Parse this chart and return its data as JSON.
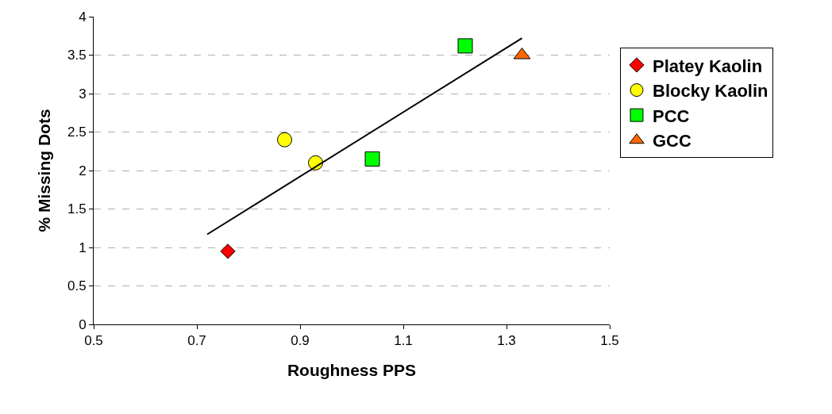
{
  "chart_data": {
    "type": "scatter",
    "xlabel": "Roughness PPS",
    "ylabel": "% Missing Dots",
    "xlim": [
      0.5,
      1.5
    ],
    "xticks": [
      0.5,
      0.7,
      0.9,
      1.1,
      1.3,
      1.5
    ],
    "ylim": [
      0,
      4
    ],
    "yticks": [
      0,
      0.5,
      1,
      1.5,
      2,
      2.5,
      3,
      3.5,
      4
    ],
    "grid": "y",
    "legend": "right",
    "series": [
      {
        "name": "Platey Kaolin",
        "color": "#ff0000",
        "marker": "diamond",
        "x": [
          0.76
        ],
        "values": [
          0.95
        ]
      },
      {
        "name": "Blocky Kaolin",
        "color": "#ffff00",
        "marker": "circle",
        "x": [
          0.87,
          0.93
        ],
        "values": [
          2.4,
          2.1
        ]
      },
      {
        "name": "PCC",
        "color": "#00ff00",
        "marker": "square",
        "x": [
          1.04,
          1.22
        ],
        "values": [
          2.15,
          3.62
        ]
      },
      {
        "name": "GCC",
        "color": "#ff6600",
        "marker": "triangle",
        "x": [
          1.33
        ],
        "values": [
          3.5
        ]
      },
      {
        "type": "line",
        "color": "#000000",
        "marker": "none",
        "line_style": "solid",
        "x": [
          0.72,
          1.33
        ],
        "values": [
          1.17,
          3.72
        ]
      }
    ]
  }
}
